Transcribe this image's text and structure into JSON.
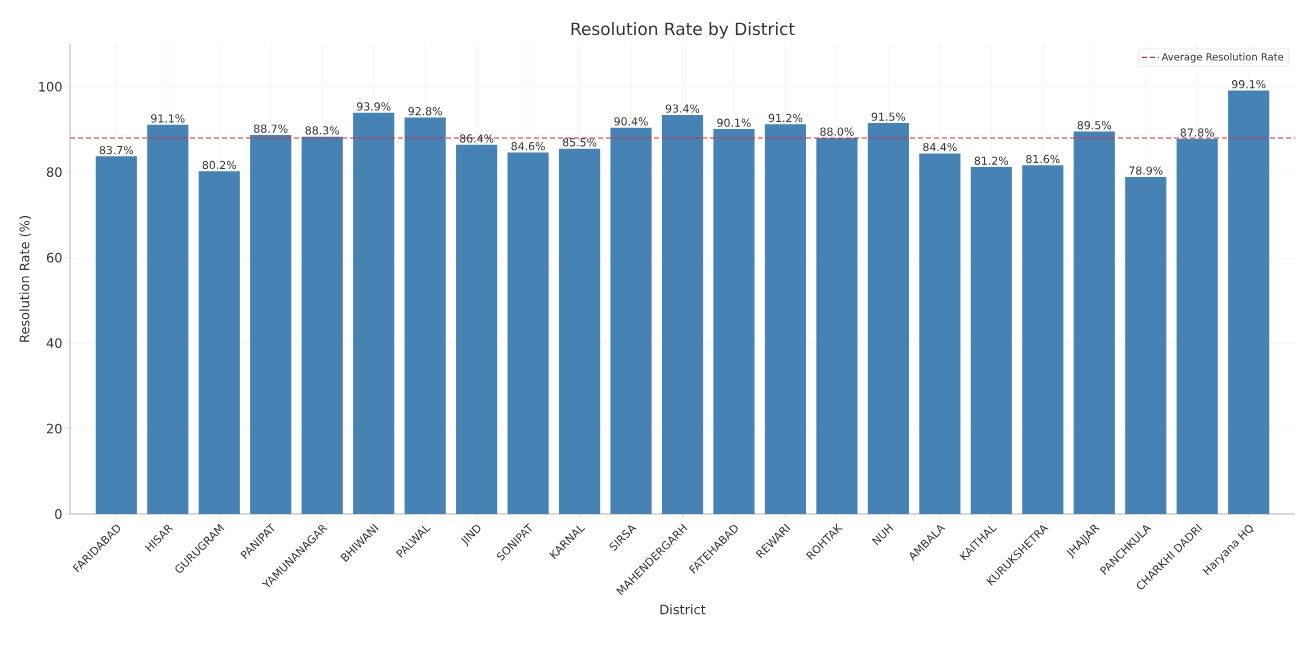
{
  "chart_data": {
    "type": "bar",
    "title": "Resolution Rate by District",
    "xlabel": "District",
    "ylabel": "Resolution Rate (%)",
    "categories": [
      "FARIDABAD",
      "HISAR",
      "GURUGRAM",
      "PANIPAT",
      "YAMUNANAGAR",
      "BHIWANI",
      "PALWAL",
      "JIND",
      "SONIPAT",
      "KARNAL",
      "SIRSA",
      "MAHENDERGARH",
      "FATEHABAD",
      "REWARI",
      "ROHTAK",
      "NUH",
      "AMBALA",
      "KAITHAL",
      "KURUKSHETRA",
      "JHAJJAR",
      "PANCHKULA",
      "CHARKHI DADRI",
      "Haryana HQ"
    ],
    "values": [
      83.7,
      91.1,
      80.2,
      88.7,
      88.3,
      93.9,
      92.8,
      86.4,
      84.6,
      85.5,
      90.4,
      93.4,
      90.1,
      91.2,
      88.0,
      91.5,
      84.4,
      81.2,
      81.6,
      89.5,
      78.9,
      87.8,
      99.1
    ],
    "value_labels": [
      "83.7%",
      "91.1%",
      "80.2%",
      "88.7%",
      "88.3%",
      "93.9%",
      "92.8%",
      "86.4%",
      "84.6%",
      "85.5%",
      "90.4%",
      "93.4%",
      "90.1%",
      "91.2%",
      "88.0%",
      "91.5%",
      "84.4%",
      "81.2%",
      "81.6%",
      "89.5%",
      "78.9%",
      "87.8%",
      "99.1%"
    ],
    "color": "#4682b4",
    "ylim": [
      0,
      110
    ],
    "yticks": [
      0,
      20,
      40,
      60,
      80,
      100
    ],
    "ref_lines": [
      {
        "axis": "y",
        "value": 88.0,
        "label": "Average Resolution Rate",
        "color": "#e8232a",
        "line_style": "dashed"
      }
    ],
    "grid": true,
    "legend": "top right"
  }
}
